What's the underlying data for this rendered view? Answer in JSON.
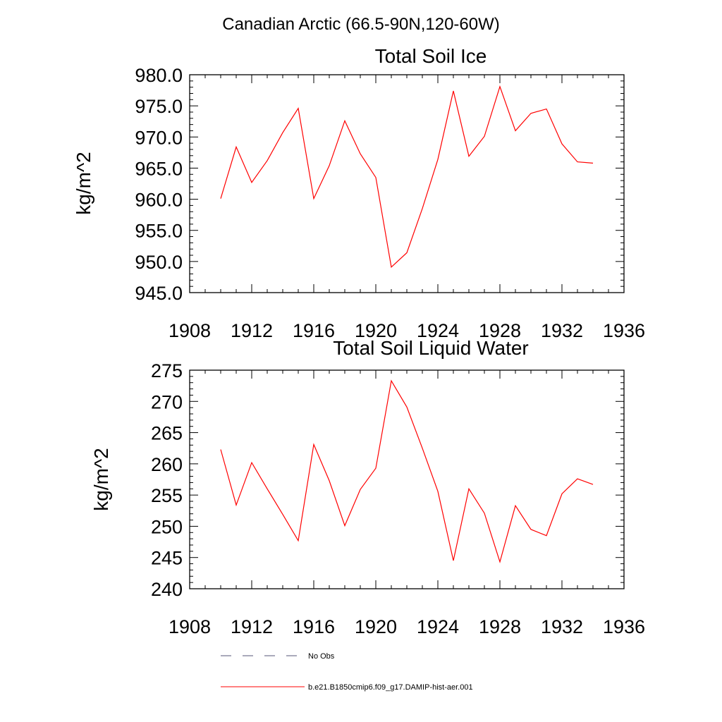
{
  "figure": {
    "main_title": "Canadian Arctic (66.5-90N,120-60W)"
  },
  "chart_data": [
    {
      "type": "line",
      "title": "Total Soil Ice",
      "xlabel": "",
      "ylabel": "kg/m^2",
      "xlim": [
        1908,
        1936
      ],
      "ylim": [
        945,
        980
      ],
      "x_ticks": [
        1908,
        1912,
        1916,
        1920,
        1924,
        1928,
        1932,
        1936
      ],
      "x_tick_labels": [
        "1908",
        "1912",
        "1916",
        "1920",
        "1924",
        "1928",
        "1932",
        "1936"
      ],
      "y_ticks": [
        945,
        950,
        955,
        960,
        965,
        970,
        975,
        980
      ],
      "y_tick_labels": [
        "945.0",
        "950.0",
        "955.0",
        "960.0",
        "965.0",
        "970.0",
        "975.0",
        "980.0"
      ],
      "x_minor_step": 1,
      "y_minor_step": 1,
      "grid": false,
      "x": [
        1910,
        1911,
        1912,
        1913,
        1914,
        1915,
        1916,
        1917,
        1918,
        1919,
        1920,
        1921,
        1922,
        1923,
        1924,
        1925,
        1926,
        1927,
        1928,
        1929,
        1930,
        1931,
        1932,
        1933,
        1934
      ],
      "series": [
        {
          "name": "b.e21.B1850cmip6.f09_g17.DAMIP-hist-aer.001",
          "color": "#ff0000",
          "values": [
            960.1,
            968.4,
            962.7,
            966.2,
            970.7,
            974.6,
            960.1,
            965.4,
            972.6,
            967.3,
            963.5,
            949.1,
            951.4,
            958.5,
            966.4,
            977.4,
            966.9,
            970.1,
            978.1,
            971.0,
            973.8,
            974.5,
            968.9,
            966.0,
            965.8
          ]
        }
      ]
    },
    {
      "type": "line",
      "title": "Total Soil Liquid Water",
      "xlabel": "",
      "ylabel": "kg/m^2",
      "xlim": [
        1908,
        1936
      ],
      "ylim": [
        240,
        275
      ],
      "x_ticks": [
        1908,
        1912,
        1916,
        1920,
        1924,
        1928,
        1932,
        1936
      ],
      "x_tick_labels": [
        "1908",
        "1912",
        "1916",
        "1920",
        "1924",
        "1928",
        "1932",
        "1936"
      ],
      "y_ticks": [
        240,
        245,
        250,
        255,
        260,
        265,
        270,
        275
      ],
      "y_tick_labels": [
        "240",
        "245",
        "250",
        "255",
        "260",
        "265",
        "270",
        "275"
      ],
      "x_minor_step": 1,
      "y_minor_step": 1,
      "grid": false,
      "x": [
        1910,
        1911,
        1912,
        1913,
        1914,
        1915,
        1916,
        1917,
        1918,
        1919,
        1920,
        1921,
        1922,
        1923,
        1924,
        1925,
        1926,
        1927,
        1928,
        1929,
        1930,
        1931,
        1932,
        1933,
        1934
      ],
      "series": [
        {
          "name": "b.e21.B1850cmip6.f09_g17.DAMIP-hist-aer.001",
          "color": "#ff0000",
          "values": [
            262.3,
            253.4,
            260.2,
            256.0,
            251.9,
            247.7,
            263.1,
            257.3,
            250.1,
            255.9,
            259.3,
            273.3,
            269.1,
            262.5,
            255.6,
            244.5,
            256.0,
            252.1,
            244.3,
            253.3,
            249.5,
            248.5,
            255.2,
            257.6,
            256.7
          ]
        }
      ]
    }
  ],
  "legend": {
    "placement": "bottom",
    "entries": [
      {
        "label": "No Obs",
        "color": "#555577",
        "dash": "dashed"
      },
      {
        "label": "b.e21.B1850cmip6.f09_g17.DAMIP-hist-aer.001",
        "color": "#ff0000",
        "dash": "solid"
      }
    ]
  }
}
